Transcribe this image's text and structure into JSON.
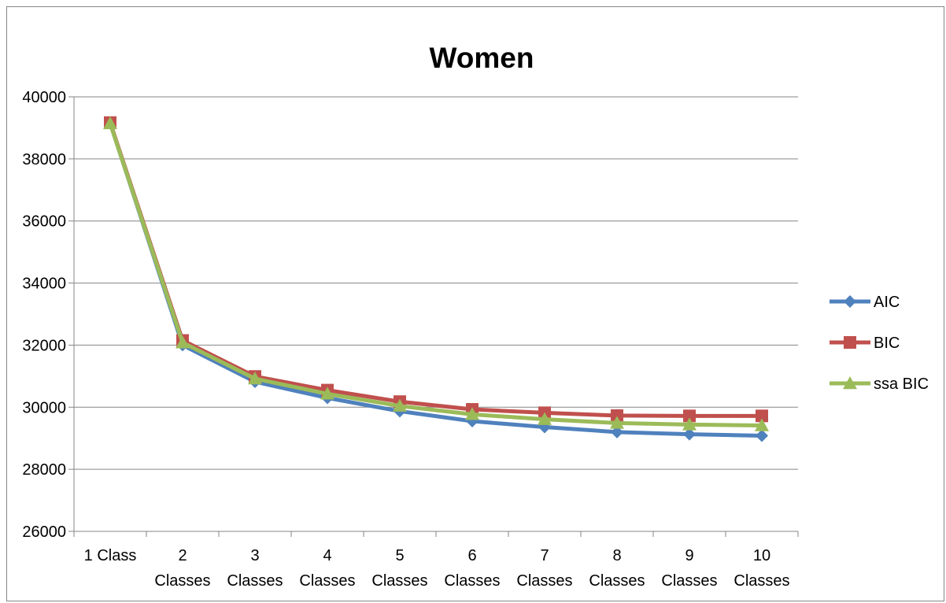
{
  "chart_data": {
    "type": "line",
    "title": "Women",
    "xlabel": "",
    "ylabel": "",
    "categories": [
      [
        "1 Class"
      ],
      [
        "2",
        "Classes"
      ],
      [
        "3",
        "Classes"
      ],
      [
        "4",
        "Classes"
      ],
      [
        "5",
        "Classes"
      ],
      [
        "6",
        "Classes"
      ],
      [
        "7",
        "Classes"
      ],
      [
        "8",
        "Classes"
      ],
      [
        "9",
        "Classes"
      ],
      [
        "10",
        "Classes"
      ]
    ],
    "ylim": [
      26000,
      40000
    ],
    "yticks": [
      26000,
      28000,
      30000,
      32000,
      34000,
      36000,
      38000,
      40000
    ],
    "grid": true,
    "legend_position": "right",
    "series": [
      {
        "name": "AIC",
        "marker": "diamond",
        "color": "#4F81BD",
        "values": [
          39150,
          32000,
          30820,
          30300,
          29870,
          29550,
          29360,
          29200,
          29130,
          29080
        ]
      },
      {
        "name": "BIC",
        "marker": "square",
        "color": "#C0504D",
        "values": [
          39170,
          32150,
          30990,
          30550,
          30180,
          29930,
          29820,
          29730,
          29720,
          29720
        ]
      },
      {
        "name": "ssa BIC",
        "marker": "triangle",
        "color": "#9BBB59",
        "values": [
          39140,
          32080,
          30920,
          30430,
          30040,
          29770,
          29610,
          29490,
          29440,
          29410
        ]
      }
    ]
  }
}
